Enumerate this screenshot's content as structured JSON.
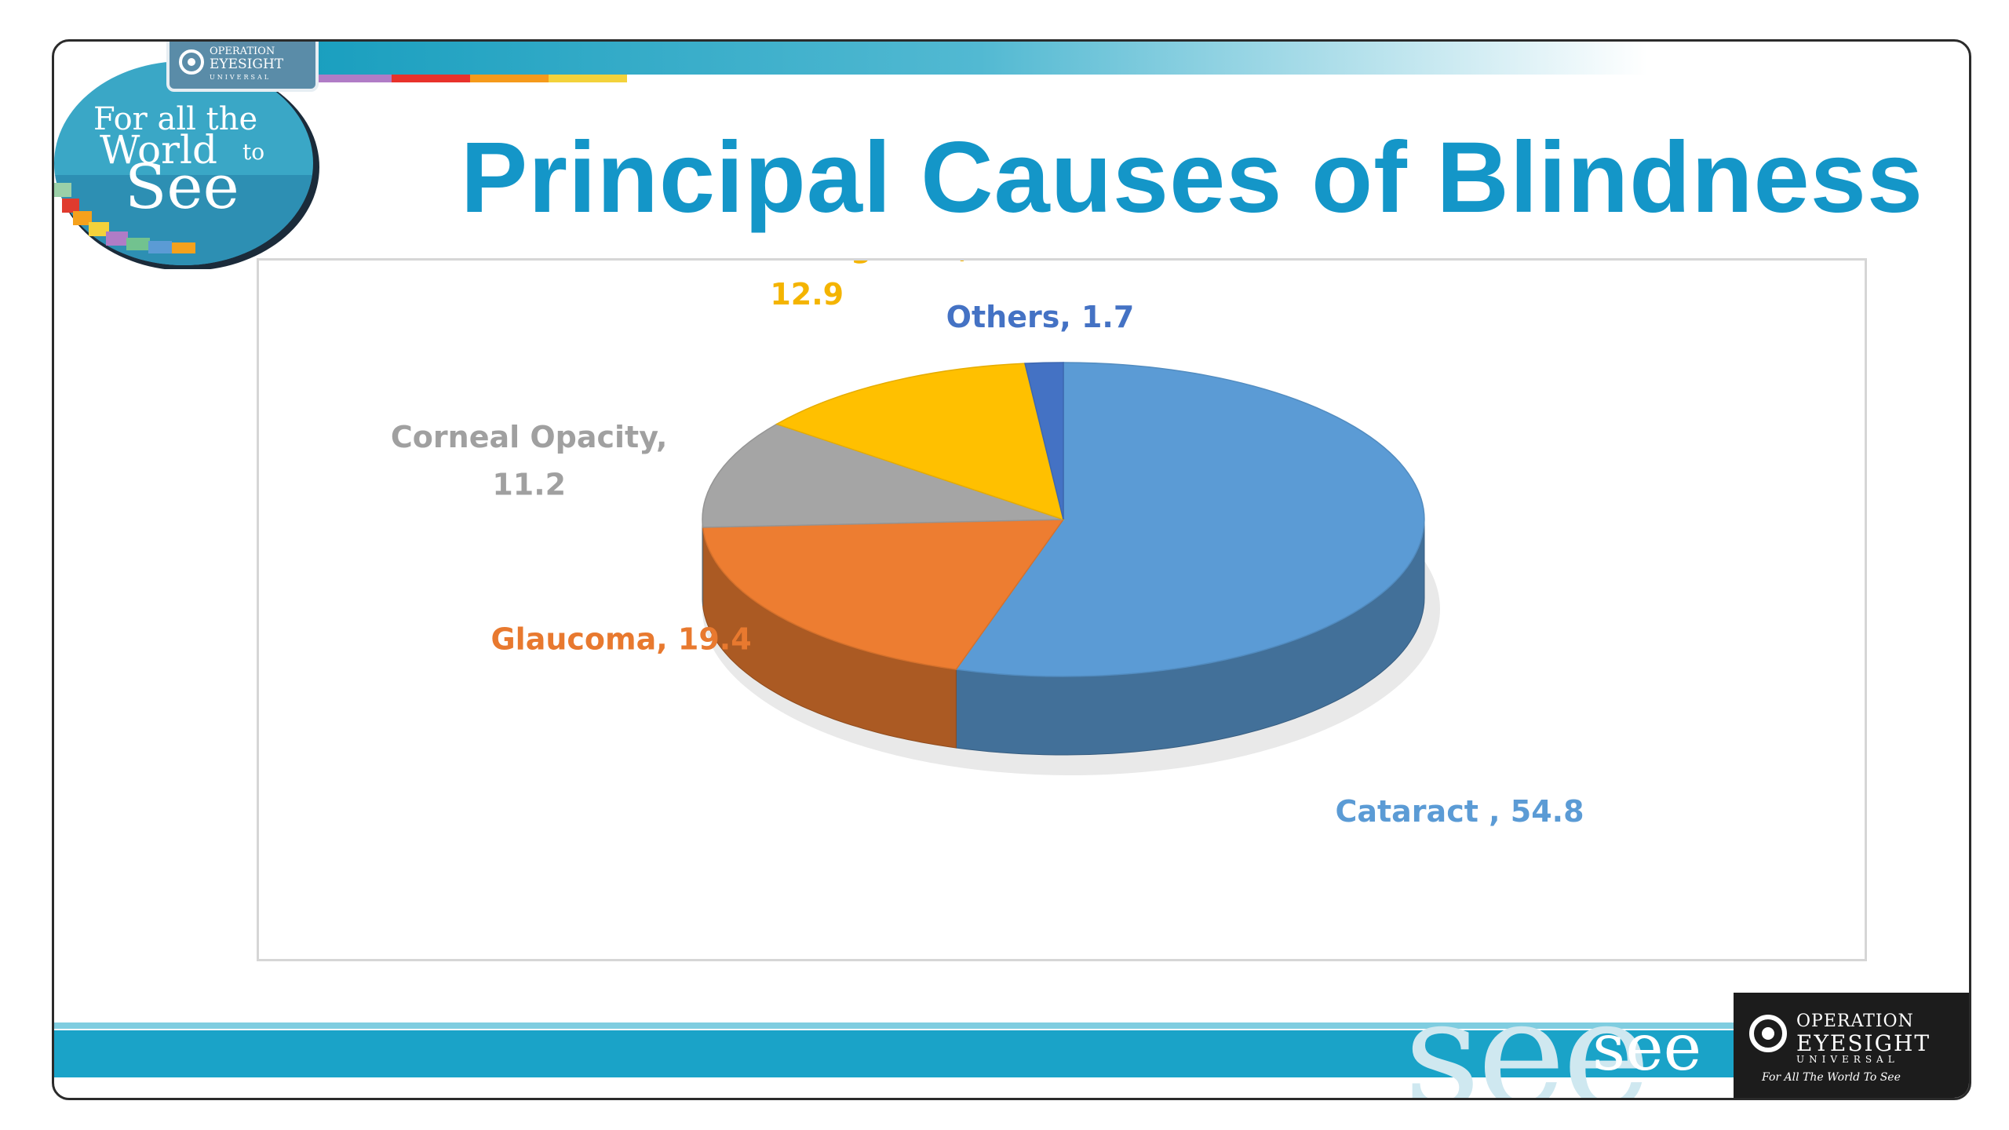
{
  "slide": {
    "title": "Principal Causes of Blindness",
    "logo_tagline": [
      "For all the",
      "World",
      "to",
      "See"
    ],
    "header_brand": [
      "OPERATION",
      "EYESIGHT",
      "UNIVERSAL"
    ],
    "footer_see": "see",
    "footer_brand": {
      "line1": "OPERATION",
      "line2": "EYESIGHT",
      "line3": "UNIVERSAL",
      "tagline": "For All The World To See"
    },
    "colors": {
      "title": "#1496c8",
      "band": "#1aa3c8"
    }
  },
  "chart_data": {
    "type": "pie",
    "title": "",
    "slices": [
      {
        "name": "Cataract",
        "value": 54.8,
        "label": "Cataract , 54.8",
        "color": "#5b9bd5",
        "label_color": "#5b9bd5"
      },
      {
        "name": "Glaucoma",
        "value": 19.4,
        "label": "Glaucoma, 19.4",
        "color": "#ed7d31",
        "label_color": "#e8792f"
      },
      {
        "name": "Corneal Opacity",
        "value": 11.2,
        "label_lines": [
          "Corneal Opacity,",
          "11.2"
        ],
        "color": "#a5a5a5",
        "label_color": "#a0a0a0"
      },
      {
        "name": "Posterior Segment",
        "value": 12.9,
        "label_lines": [
          "Posterior Segment,",
          "12.9"
        ],
        "color": "#ffc000",
        "label_color": "#f4b400"
      },
      {
        "name": "Others",
        "value": 1.7,
        "label": "Others, 1.7",
        "color": "#4472c4",
        "label_color": "#4472c4"
      }
    ],
    "style": "3d-pie",
    "legend": "none"
  }
}
